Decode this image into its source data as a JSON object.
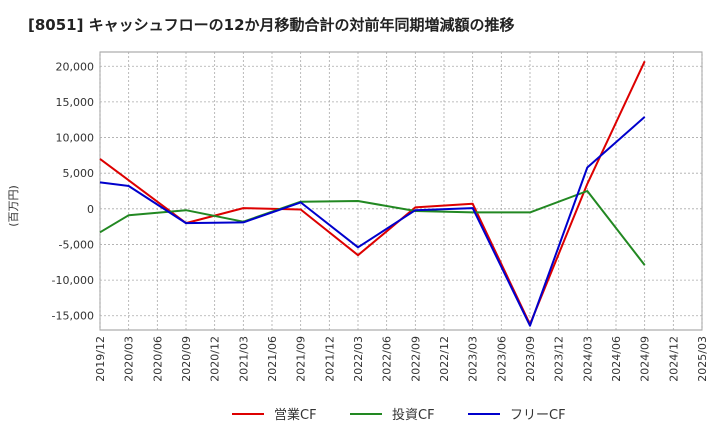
{
  "chart_data": {
    "type": "line",
    "title": "[8051]  キャッシュフローの12か月移動合計の対前年同期増減額の推移",
    "xlabel": "",
    "ylabel": "(百万円)",
    "ylim": [
      -17000,
      22000
    ],
    "yticks": [
      -15000,
      -10000,
      -5000,
      0,
      5000,
      10000,
      15000,
      20000
    ],
    "ytick_labels": [
      "-15,000",
      "-10,000",
      "-5,000",
      "0",
      "5,000",
      "10,000",
      "15,000",
      "20,000"
    ],
    "categories": [
      "2019/12",
      "2020/03",
      "2020/06",
      "2020/09",
      "2020/12",
      "2021/03",
      "2021/06",
      "2021/09",
      "2021/12",
      "2022/03",
      "2022/06",
      "2022/09",
      "2022/12",
      "2023/03",
      "2023/06",
      "2023/09",
      "2023/12",
      "2024/03",
      "2024/06",
      "2024/09",
      "2024/12",
      "2025/03"
    ],
    "grid": true,
    "legend_position": "bottom",
    "series": [
      {
        "name": "営業CF",
        "color": "#dd0000",
        "values": [
          7000,
          4000,
          null,
          -2000,
          null,
          100,
          null,
          -100,
          null,
          -6500,
          null,
          200,
          null,
          700,
          null,
          -16200,
          null,
          3500,
          null,
          20700,
          null,
          null
        ]
      },
      {
        "name": "投資CF",
        "color": "#228822",
        "values": [
          -3300,
          -900,
          null,
          -200,
          null,
          -1800,
          null,
          1000,
          null,
          1100,
          null,
          -300,
          null,
          -500,
          null,
          -500,
          null,
          2500,
          null,
          -7900,
          null,
          null
        ]
      },
      {
        "name": "フリーCF",
        "color": "#0000cc",
        "values": [
          3700,
          3200,
          null,
          -2000,
          null,
          -1900,
          null,
          900,
          null,
          -5400,
          null,
          -200,
          null,
          100,
          null,
          -16400,
          null,
          5800,
          null,
          12900,
          null,
          null
        ]
      }
    ]
  }
}
